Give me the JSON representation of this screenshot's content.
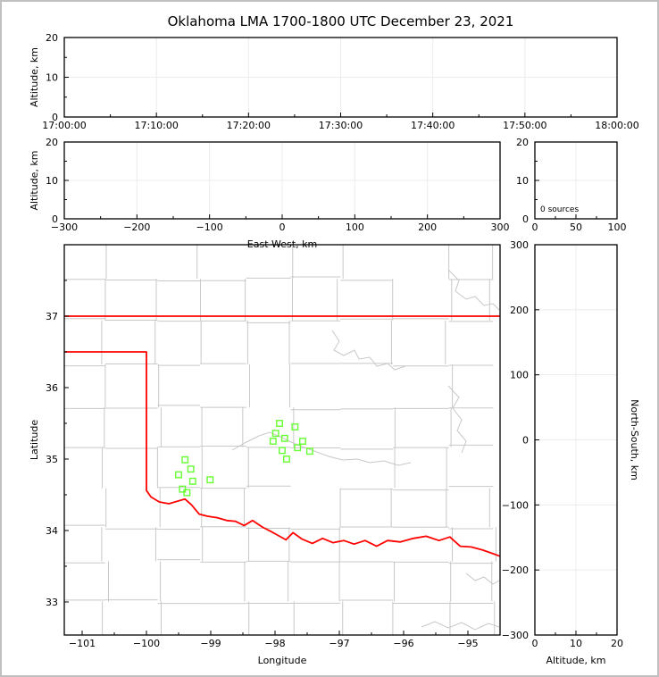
{
  "title": "Oklahoma LMA 1700-1800 UTC December 23, 2021",
  "colors": {
    "spine": "#000000",
    "grid": "#ececec",
    "county": "#c8c8c8",
    "river": "#c8c8c8",
    "state_border": "#ff0000",
    "station": "#66ff33",
    "text": "#000000",
    "frame": "#c0c0c0",
    "background": "#ffffff"
  },
  "chart_data": [
    {
      "id": "time_height_panel",
      "type": "scatter",
      "description": "Lightning source altitude vs time (empty, 0 sources)",
      "xlabel": "",
      "ylabel": "Altitude, km",
      "xlim": [
        0,
        3600
      ],
      "ylim": [
        0,
        20
      ],
      "x_ticks": {
        "values": [
          0,
          600,
          1200,
          1800,
          2400,
          3000,
          3600
        ],
        "labels": [
          "17:00:00",
          "17:10:00",
          "17:20:00",
          "17:30:00",
          "17:40:00",
          "17:50:00",
          "18:00:00"
        ],
        "minor": [
          300,
          900,
          1500,
          2100,
          2700,
          3300
        ]
      },
      "y_ticks": {
        "values": [
          0,
          10,
          20
        ],
        "labels": [
          "0",
          "10",
          "20"
        ],
        "minor": [
          5,
          15
        ]
      },
      "grid_x": [
        600,
        1200,
        1800,
        2400,
        3000
      ],
      "grid_y": [
        10
      ],
      "points": []
    },
    {
      "id": "ew_height_panel",
      "type": "scatter",
      "description": "Altitude vs East-West distance (empty, 0 sources)",
      "xlabel": "East-West, km",
      "ylabel": "Altitude, km",
      "xlim": [
        -300,
        300
      ],
      "ylim": [
        0,
        20
      ],
      "x_ticks": {
        "values": [
          -300,
          -200,
          -100,
          0,
          100,
          200,
          300
        ],
        "labels": [
          "−300",
          "−200",
          "−100",
          "0",
          "100",
          "200",
          "300"
        ],
        "minor": [
          -250,
          -150,
          -50,
          50,
          150,
          250
        ]
      },
      "y_ticks": {
        "values": [
          0,
          10,
          20
        ],
        "labels": [
          "0",
          "10",
          "20"
        ],
        "minor": [
          5,
          15
        ]
      },
      "grid_x": [
        -200,
        -100,
        0,
        100,
        200
      ],
      "grid_y": [
        10
      ],
      "points": []
    },
    {
      "id": "alt_histogram_panel",
      "type": "bar",
      "description": "Altitude histogram of source counts",
      "xlabel": "",
      "ylabel": "",
      "annotation": "0 sources",
      "xlim": [
        0,
        100
      ],
      "ylim": [
        0,
        20
      ],
      "x_ticks": {
        "values": [
          0,
          50,
          100
        ],
        "labels": [
          "0",
          "50",
          "100"
        ],
        "minor": [
          25,
          75
        ]
      },
      "y_ticks": {
        "values": [
          0,
          10,
          20
        ],
        "labels": [
          "0",
          "10",
          "20"
        ],
        "minor": [
          5,
          15
        ]
      },
      "grid_x": [
        50
      ],
      "grid_y": [
        10
      ],
      "values": []
    },
    {
      "id": "plan_view_map",
      "type": "scatter",
      "description": "Plan-view map of Oklahoma with LMA station locations (green squares); 0 lightning sources plotted",
      "xlabel": "Longitude",
      "ylabel": "Latitude",
      "xlim": [
        -101.2778,
        -94.5
      ],
      "ylim": [
        32.5375,
        38.0
      ],
      "x_ticks": {
        "values": [
          -101,
          -100,
          -99,
          -98,
          -97,
          -96,
          -95
        ],
        "labels": [
          "−101",
          "−100",
          "−99",
          "−98",
          "−97",
          "−96",
          "−95"
        ],
        "minor": [
          -100.5,
          -99.5,
          -98.5,
          -97.5,
          -96.5,
          -95.5,
          -94.5
        ]
      },
      "y_ticks": {
        "values": [
          33,
          34,
          35,
          36,
          37
        ],
        "labels": [
          "33",
          "34",
          "35",
          "36",
          "37"
        ],
        "minor": [
          33.5,
          34.5,
          35.5,
          36.5,
          37.5
        ]
      },
      "grid_x": [],
      "grid_y": [],
      "stations": [
        [
          -97.93,
          35.5
        ],
        [
          -97.69,
          35.45
        ],
        [
          -97.99,
          35.36
        ],
        [
          -97.85,
          35.29
        ],
        [
          -98.03,
          35.25
        ],
        [
          -97.57,
          35.25
        ],
        [
          -97.65,
          35.16
        ],
        [
          -97.89,
          35.12
        ],
        [
          -97.46,
          35.11
        ],
        [
          -97.82,
          35.0
        ],
        [
          -99.4,
          34.99
        ],
        [
          -99.31,
          34.86
        ],
        [
          -99.5,
          34.78
        ],
        [
          -99.28,
          34.69
        ],
        [
          -99.01,
          34.71
        ],
        [
          -99.44,
          34.58
        ],
        [
          -99.37,
          34.53
        ]
      ],
      "sources": [],
      "state_border": [
        [
          [
            -101.2778,
            37.0
          ],
          [
            -94.5,
            37.0
          ]
        ],
        [
          [
            -101.2778,
            36.5
          ],
          [
            -100.0,
            36.5
          ],
          [
            -100.0,
            34.56
          ],
          [
            -99.93,
            34.47
          ],
          [
            -99.8,
            34.4
          ],
          [
            -99.65,
            34.375
          ],
          [
            -99.52,
            34.41
          ],
          [
            -99.4,
            34.44
          ],
          [
            -99.3,
            34.36
          ],
          [
            -99.18,
            34.23
          ],
          [
            -99.05,
            34.2
          ],
          [
            -98.9,
            34.18
          ],
          [
            -98.75,
            34.14
          ],
          [
            -98.62,
            34.13
          ],
          [
            -98.48,
            34.07
          ],
          [
            -98.35,
            34.14
          ],
          [
            -98.2,
            34.05
          ],
          [
            -98.07,
            33.99
          ],
          [
            -97.93,
            33.92
          ],
          [
            -97.83,
            33.87
          ],
          [
            -97.72,
            33.97
          ],
          [
            -97.58,
            33.88
          ],
          [
            -97.42,
            33.82
          ],
          [
            -97.26,
            33.89
          ],
          [
            -97.1,
            33.83
          ],
          [
            -96.93,
            33.86
          ],
          [
            -96.77,
            33.81
          ],
          [
            -96.6,
            33.86
          ],
          [
            -96.42,
            33.78
          ],
          [
            -96.25,
            33.86
          ],
          [
            -96.05,
            33.84
          ],
          [
            -95.85,
            33.89
          ],
          [
            -95.65,
            33.92
          ],
          [
            -95.45,
            33.86
          ],
          [
            -95.28,
            33.91
          ],
          [
            -95.12,
            33.78
          ],
          [
            -94.95,
            33.77
          ],
          [
            -94.78,
            33.73
          ],
          [
            -94.62,
            33.68
          ],
          [
            -94.5,
            33.64
          ]
        ]
      ]
    },
    {
      "id": "ns_height_panel",
      "type": "scatter",
      "description": "North-South distance vs altitude (empty, 0 sources)",
      "xlabel": "Altitude, km",
      "ylabel_right": "North-South, km",
      "xlim": [
        0,
        20
      ],
      "ylim": [
        -300,
        300
      ],
      "x_ticks": {
        "values": [
          0,
          10,
          20
        ],
        "labels": [
          "0",
          "10",
          "20"
        ],
        "minor": [
          5,
          15
        ]
      },
      "y_ticks": {
        "values": [
          -300,
          -200,
          -100,
          0,
          100,
          200,
          300
        ],
        "labels": [
          "−300",
          "−200",
          "−100",
          "0",
          "100",
          "200",
          "300"
        ],
        "minor": []
      },
      "grid_x": [
        10
      ],
      "grid_y": [
        -200,
        -100,
        0,
        100,
        200
      ],
      "points": []
    }
  ]
}
